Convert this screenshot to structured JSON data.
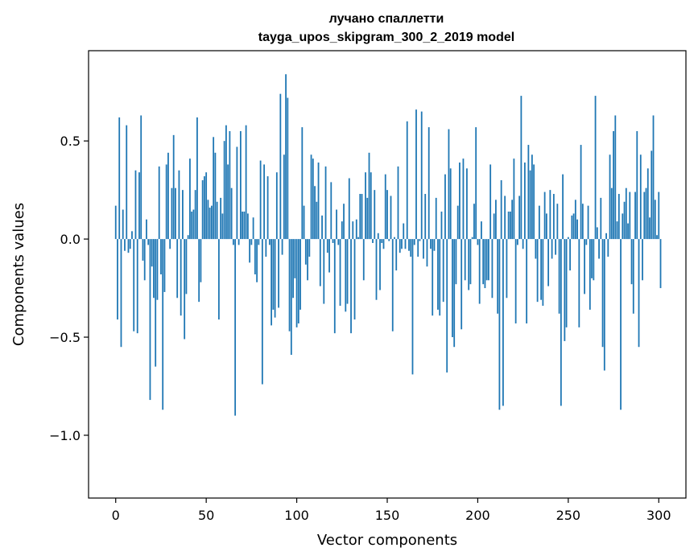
{
  "chart_data": {
    "type": "bar",
    "title": "лучано спаллетти",
    "subtitle": "tayga_upos_skipgram_300_2_2019 model",
    "xlabel": "Vector components",
    "ylabel": "Components values",
    "xlim": [
      -15,
      315
    ],
    "ylim": [
      -1.32,
      0.96
    ],
    "x_ticks": [
      0,
      50,
      100,
      150,
      200,
      250,
      300
    ],
    "y_ticks": [
      -1.0,
      -0.5,
      0.0,
      0.5
    ],
    "y_tick_labels": [
      "−1.0",
      "−0.5",
      "0.0",
      "0.5"
    ],
    "grid": false,
    "legend": "none",
    "bar_color": "#1f77b4",
    "values": [
      0.17,
      -0.41,
      0.62,
      -0.55,
      0.15,
      -0.06,
      0.58,
      -0.07,
      -0.05,
      0.04,
      -0.47,
      0.35,
      -0.48,
      0.34,
      0.63,
      -0.11,
      -0.21,
      0.1,
      -0.03,
      -0.82,
      -0.14,
      -0.3,
      -0.65,
      -0.31,
      0.37,
      -0.18,
      -0.87,
      -0.27,
      0.38,
      0.44,
      -0.05,
      0.26,
      0.53,
      0.26,
      -0.3,
      0.35,
      -0.39,
      0.25,
      -0.51,
      -0.28,
      0.02,
      0.41,
      0.14,
      0.15,
      0.25,
      0.62,
      -0.32,
      -0.22,
      0.3,
      0.32,
      0.34,
      0.2,
      0.16,
      0.17,
      0.52,
      0.44,
      0.19,
      -0.41,
      0.21,
      0.13,
      0.5,
      0.58,
      0.38,
      0.55,
      0.26,
      -0.03,
      -0.9,
      0.47,
      -0.03,
      0.55,
      0.14,
      0.14,
      0.58,
      0.13,
      -0.12,
      -0.03,
      0.11,
      -0.18,
      -0.22,
      -0.03,
      0.4,
      -0.74,
      0.38,
      -0.09,
      0.32,
      -0.03,
      -0.44,
      -0.36,
      -0.4,
      0.34,
      -0.35,
      0.74,
      -0.08,
      0.43,
      0.84,
      0.72,
      -0.47,
      -0.59,
      -0.3,
      -0.2,
      -0.45,
      -0.43,
      -0.36,
      0.57,
      0.17,
      -0.13,
      -0.21,
      -0.09,
      0.43,
      0.41,
      0.27,
      0.19,
      0.39,
      -0.24,
      0.12,
      -0.33,
      0.37,
      -0.07,
      -0.17,
      0.29,
      -0.02,
      -0.48,
      0.15,
      -0.03,
      -0.34,
      0.09,
      0.18,
      -0.37,
      -0.33,
      0.31,
      -0.48,
      0.09,
      -0.41,
      0.1,
      0.01,
      0.23,
      0.23,
      -0.21,
      0.34,
      0.21,
      0.44,
      0.34,
      -0.02,
      0.25,
      -0.31,
      0.03,
      -0.26,
      -0.02,
      -0.05,
      0.33,
      0.25,
      -0.01,
      0.22,
      -0.47,
      0.01,
      -0.16,
      0.37,
      -0.07,
      -0.05,
      0.08,
      -0.05,
      0.6,
      -0.06,
      -0.09,
      -0.69,
      -0.03,
      0.66,
      -0.09,
      -0.01,
      0.65,
      -0.1,
      0.23,
      -0.14,
      0.57,
      -0.05,
      -0.39,
      -0.06,
      0.21,
      -0.36,
      -0.39,
      0.14,
      -0.32,
      0.33,
      -0.68,
      0.56,
      0.36,
      -0.5,
      -0.55,
      -0.23,
      0.17,
      0.39,
      -0.46,
      0.41,
      -0.21,
      0.36,
      -0.26,
      -0.23,
      0.01,
      0.18,
      0.57,
      -0.03,
      -0.33,
      0.09,
      -0.23,
      -0.25,
      -0.21,
      -0.21,
      0.38,
      -0.3,
      0.13,
      0.2,
      -0.38,
      -0.87,
      0.3,
      -0.85,
      0.22,
      -0.3,
      0.14,
      0.14,
      0.2,
      0.41,
      -0.43,
      -0.03,
      0.22,
      0.73,
      -0.05,
      0.39,
      -0.43,
      0.48,
      0.35,
      0.43,
      0.38,
      -0.1,
      -0.32,
      0.17,
      -0.31,
      -0.34,
      0.24,
      0.13,
      -0.24,
      0.25,
      -0.1,
      0.23,
      -0.08,
      0.18,
      -0.38,
      -0.85,
      0.33,
      -0.52,
      -0.45,
      0.01,
      -0.16,
      0.12,
      0.13,
      0.2,
      0.1,
      -0.45,
      0.48,
      0.18,
      -0.28,
      -0.03,
      0.17,
      -0.36,
      -0.2,
      -0.21,
      0.73,
      0.06,
      -0.1,
      0.21,
      -0.55,
      -0.67,
      0.03,
      -0.09,
      0.43,
      0.26,
      0.55,
      0.63,
      0.09,
      0.23,
      -0.87,
      0.13,
      0.19,
      0.26,
      0.08,
      0.24,
      -0.23,
      -0.38,
      0.24,
      0.55,
      -0.55,
      0.43,
      -0.21,
      0.24,
      0.26,
      0.36,
      0.11,
      0.45,
      0.63,
      0.2,
      0.02,
      0.24,
      -0.25
    ]
  }
}
